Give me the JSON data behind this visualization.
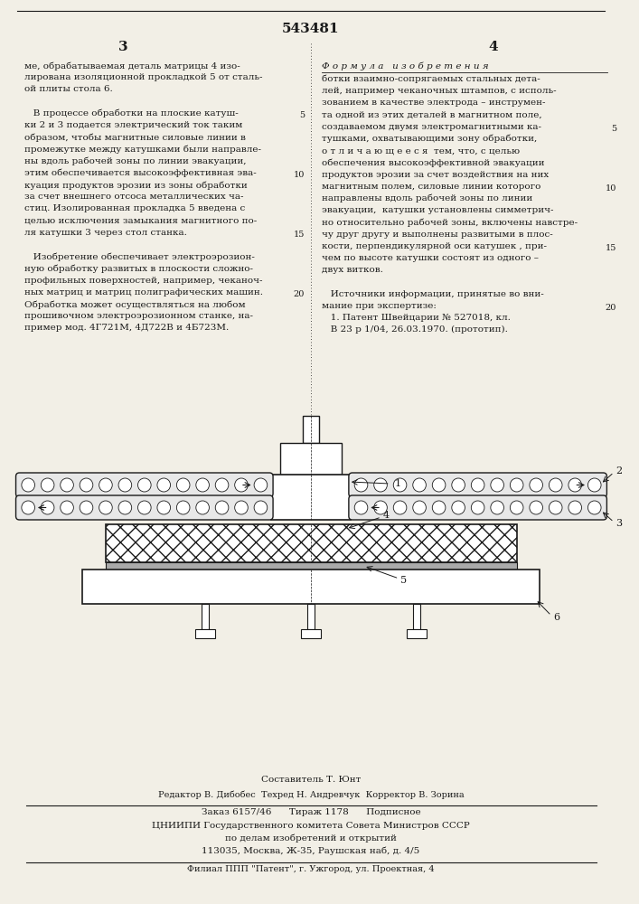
{
  "patent_number": "543481",
  "page_left": "3",
  "page_right": "4",
  "bg_color": "#f2efe6",
  "text_color": "#1a1a1a",
  "title_formula": "Ф о р м у л а   и з о б р е т е н и я",
  "left_col_lines": [
    "ме, обрабатываемая деталь матрицы 4 изо-",
    "лирована изоляционной прокладкой 5 от сталь-",
    "ой плиты стола 6.",
    "",
    "   В процессе обработки на плоские катуш-",
    "ки 2 и 3 подается электрический ток таким",
    "образом, чтобы магнитные силовые линии в",
    "промежутке между катушками были направле-",
    "ны вдоль рабочей зоны по линии эвакуации,",
    "этим обеспечивается высокоэффективная эва-",
    "куация продуктов эрозии из зоны обработки",
    "за счет внешнего отсоса металлических ча-",
    "стиц. Изолированная прокладка 5 введена с",
    "целью исключения замыкания магнитного по-",
    "ля катушки 3 через стол станка.",
    "",
    "   Изобретение обеспечивает электроэрозион-",
    "ную обработку развитых в плоскости сложно-",
    "профильных поверхностей, например, чеканоч-",
    "ных матриц и матриц полиграфических машин.",
    "Обработка может осуществляться на любом",
    "прошивочном электроэрозионном станке, на-",
    "пример мод. 4Г721М, 4Д722В и 4Б723М."
  ],
  "right_col_lines": [
    "ботки взаимно-сопрягаемых стальных дета-",
    "лей, например чеканочных штампов, с исполь-",
    "зованием в качестве электрода – инструмен-",
    "та одной из этих деталей в магнитном поле,",
    "создаваемом двумя электромагнитными ка-",
    "тушками, охватывающими зону обработки,",
    "о т л и ч а ю щ е е с я  тем, что, с целью",
    "обеспечения высокоэффективной эвакуации",
    "продуктов эрозии за счет воздействия на них",
    "магнитным полем, силовые линии которого",
    "направлены вдоль рабочей зоны по линии",
    "эвакуации,  катушки установлены симметрич-",
    "но относительно рабочей зоны, включены навстре-",
    "чу друг другу и выполнены развитыми в плос-",
    "кости, перпендикулярной оси катушек , при-",
    "чем по высоте катушки состоят из одного –",
    "двух витков.",
    "",
    "   Источники информации, принятые во вни-",
    "мание при экспертизе:",
    "   1. Патент Швейцарии № 527018, кл.",
    "   В 23 р 1/04, 26.03.1970. (прототип)."
  ],
  "composer": "Составитель Т. Юнт",
  "editor": "Редактор В. Дибобес  Техред Н. Андревчук  Корректор В. Зорина",
  "order_line": "Заказ 6157/46      Тираж 1178      Подписное",
  "institute_line": "ЦНИИПИ Государственного комитета Совета Министров СССР",
  "institute_line2": "по делам изобретений и открытий",
  "address_line": "113035, Москва, Ж-35, Раушская наб, д. 4/5",
  "filial_line": "Филиал ППП \"Патент\", г. Ужгород, ул. Проектная, 4"
}
